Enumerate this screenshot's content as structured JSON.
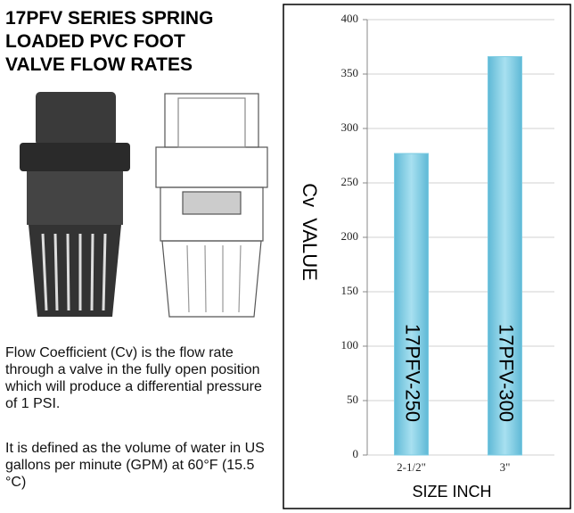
{
  "header": {
    "title_lines": [
      "17PFV SERIES SPRING",
      "LOADED PVC FOOT",
      "VALVE FLOW RATES"
    ]
  },
  "description": [
    "Flow Coefficient (Cv) is the flow rate through a valve in the fully open position which will produce a differential pressure of 1 PSI.",
    "It is defined as the volume of water in US gallons per minute (GPM) at 60°F (15.5 °C)"
  ],
  "chart_data": {
    "type": "bar",
    "y_label": "Cv  VALUE",
    "x_label": "SIZE INCH",
    "categories": [
      "2-1/2\"",
      "3\""
    ],
    "values": [
      277,
      366
    ],
    "bar_labels": [
      "17PFV-250",
      "17PFV-300"
    ],
    "color": "#7ccbe2",
    "ylim": [
      0,
      400
    ],
    "yticks": [
      0,
      50,
      100,
      150,
      200,
      250,
      300,
      350,
      400
    ],
    "grid": true
  }
}
